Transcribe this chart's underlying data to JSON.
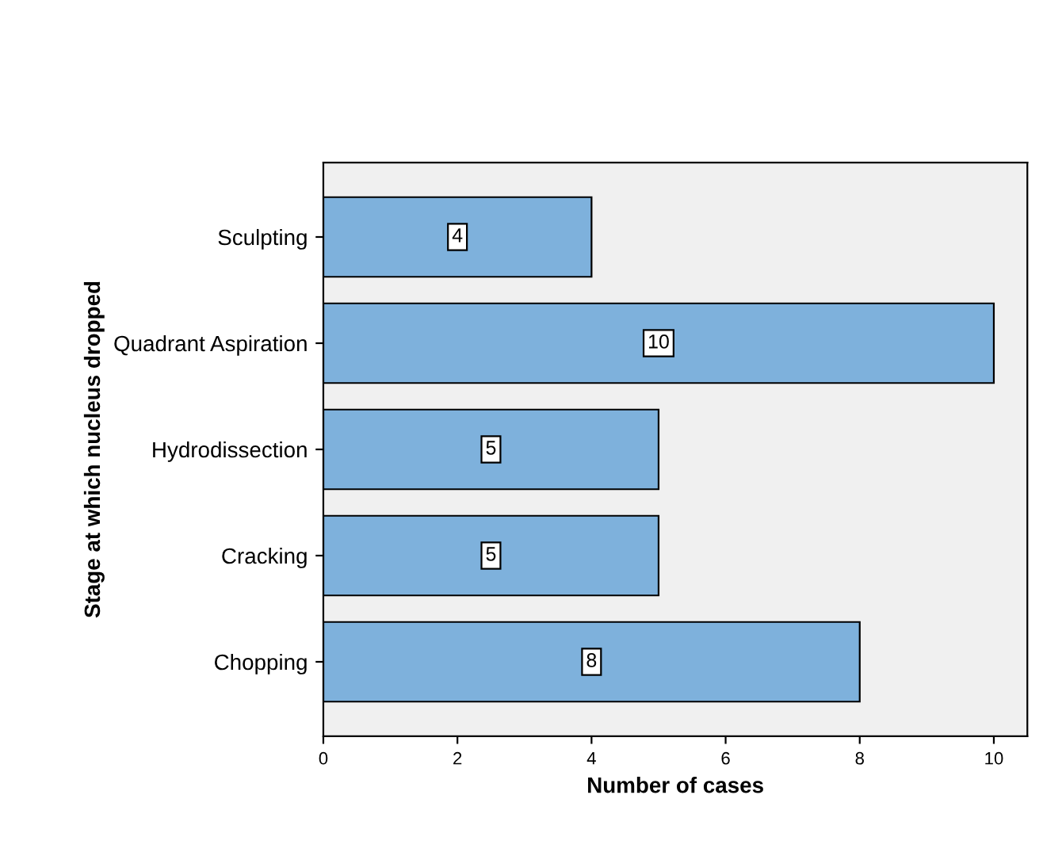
{
  "chart_data": {
    "type": "bar",
    "orientation": "horizontal",
    "categories": [
      "Sculpting",
      "Quadrant Aspiration",
      "Hydrodissection",
      "Cracking",
      "Chopping"
    ],
    "values": [
      4,
      10,
      5,
      5,
      8
    ],
    "color": "#7eb1dc",
    "xlabel": "Number of cases",
    "ylabel": "Stage at which nucleus dropped",
    "xlim": [
      0,
      10.5
    ],
    "xticks": [
      0,
      2,
      4,
      6,
      8,
      10
    ],
    "data_labels": true,
    "grid": false
  }
}
